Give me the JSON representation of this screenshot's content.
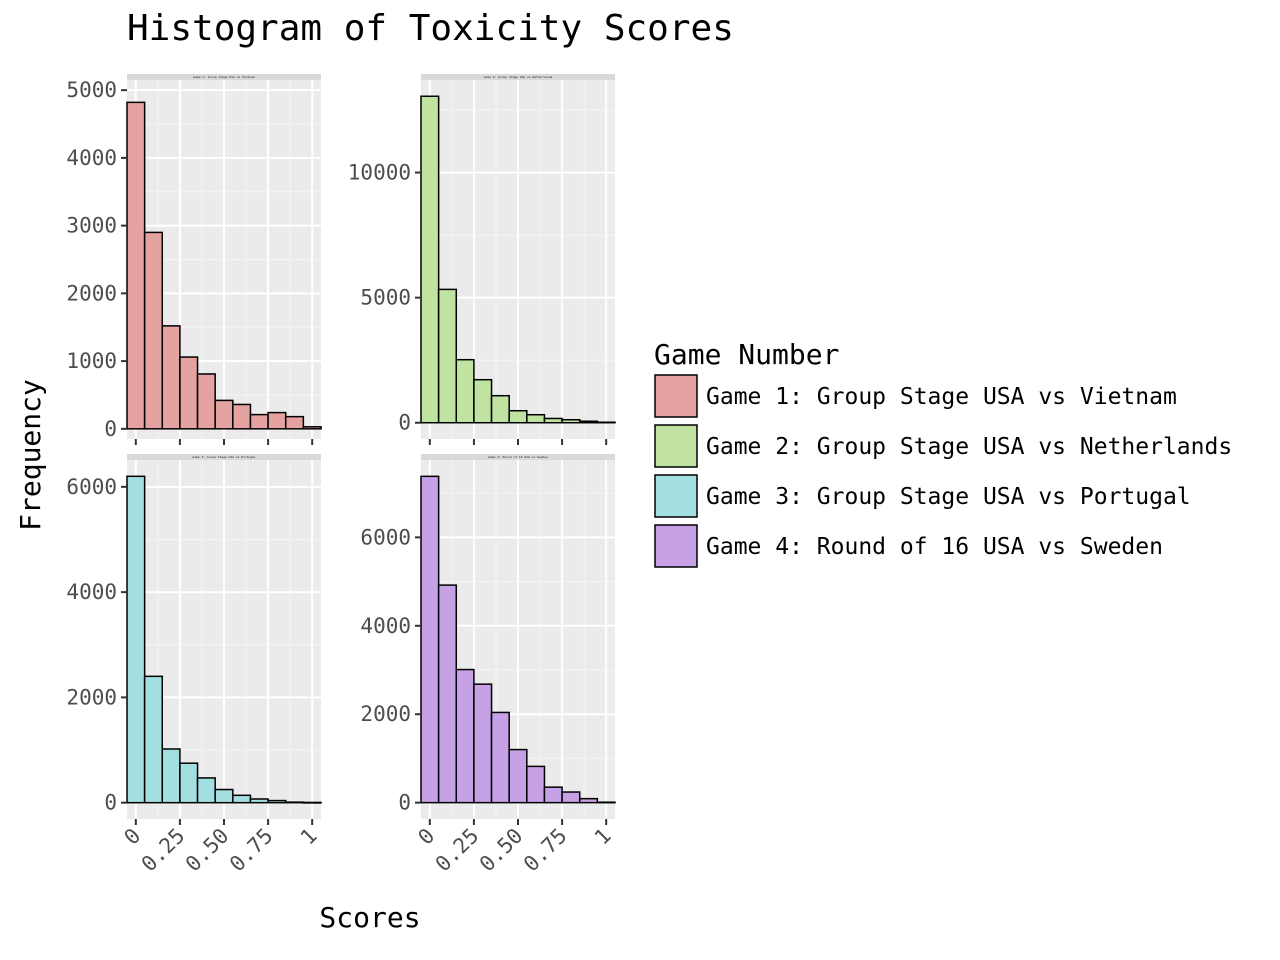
{
  "chart_data": {
    "type": "bar",
    "title": "Histogram of Toxicity Scores",
    "xlabel": "Scores",
    "ylabel": "Frequency",
    "legend": {
      "title": "Game Number",
      "position": "right",
      "entries": [
        {
          "label": "Game 1: Group Stage USA vs Vietnam",
          "color": "#E4A3A0"
        },
        {
          "label": "Game 2: Group Stage USA vs Netherlands",
          "color": "#C0E3A1"
        },
        {
          "label": "Game 3: Group Stage USA vs Portugal",
          "color": "#A3DFE1"
        },
        {
          "label": "Game 4: Round of 16 USA vs Sweden",
          "color": "#C7A1E6"
        }
      ]
    },
    "x_ticks": [
      "0",
      "0.25",
      "0.50",
      "0.75",
      "1"
    ],
    "x_tick_values": [
      0,
      0.25,
      0.5,
      0.75,
      1
    ],
    "xlim": [
      -0.05,
      1.05
    ],
    "bin_width": 0.1,
    "bin_centers": [
      0,
      0.1,
      0.2,
      0.3,
      0.4,
      0.5,
      0.6,
      0.7,
      0.8,
      0.9,
      1.0
    ],
    "grid": true,
    "panels": [
      {
        "strip": "Game 1: Group Stage USA vs Vietnam",
        "color": "#E4A3A0",
        "values": [
          4820,
          2900,
          1520,
          1060,
          810,
          420,
          360,
          210,
          240,
          180,
          30
        ],
        "ylim": [
          -150,
          5150
        ],
        "y_ticks": [
          0,
          1000,
          2000,
          3000,
          4000,
          5000
        ]
      },
      {
        "strip": "Game 2: Group Stage USA vs Netherlands",
        "color": "#C0E3A1",
        "values": [
          13050,
          5330,
          2520,
          1720,
          1080,
          480,
          320,
          170,
          120,
          60,
          20
        ],
        "ylim": [
          -650,
          13700
        ],
        "y_ticks": [
          0,
          5000,
          10000
        ]
      },
      {
        "strip": "Game 3: Group Stage USA vs Portugal",
        "color": "#A3DFE1",
        "values": [
          6200,
          2400,
          1020,
          750,
          470,
          250,
          140,
          70,
          40,
          10,
          5
        ],
        "ylim": [
          -310,
          6510
        ],
        "y_ticks": [
          0,
          2000,
          4000,
          6000
        ]
      },
      {
        "strip": "Game 4: Round of 16 USA vs Sweden",
        "color": "#C7A1E6",
        "values": [
          7380,
          4920,
          3010,
          2680,
          2040,
          1200,
          820,
          350,
          240,
          90,
          10
        ],
        "ylim": [
          -370,
          7750
        ],
        "y_ticks": [
          0,
          2000,
          4000,
          6000
        ]
      }
    ]
  }
}
